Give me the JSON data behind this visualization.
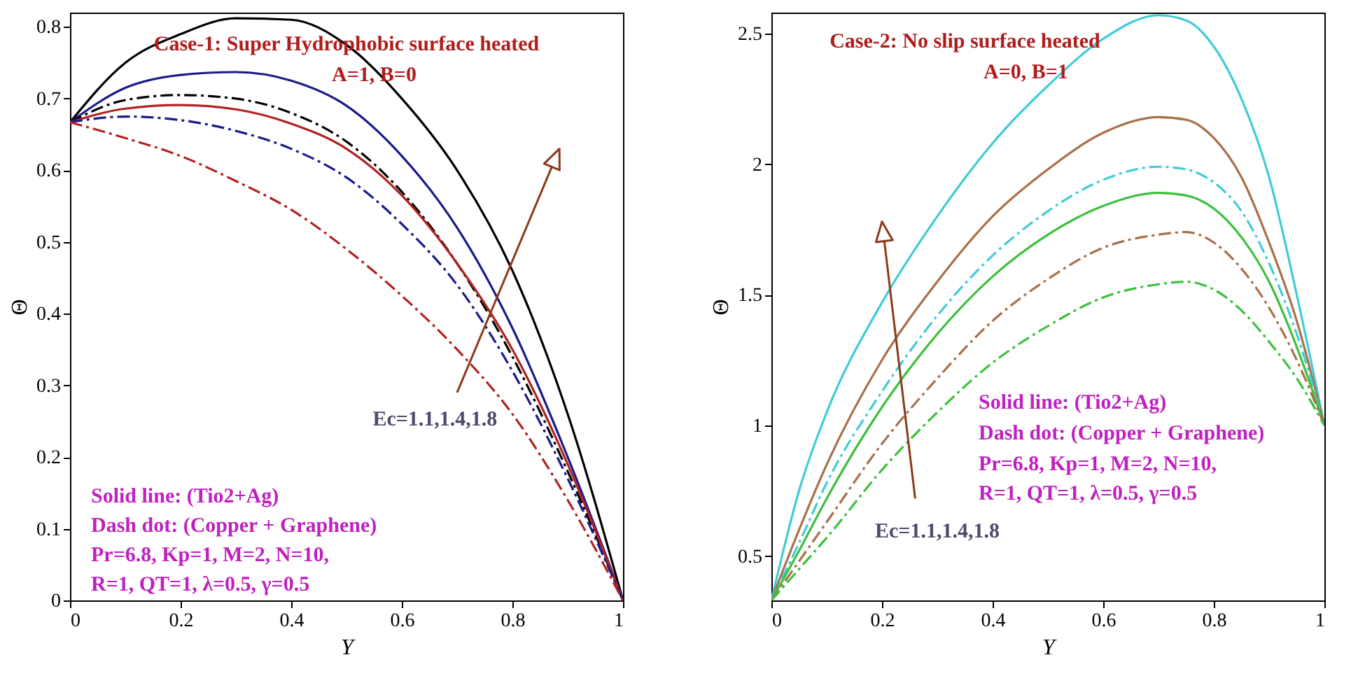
{
  "chart_data": [
    {
      "type": "line",
      "xlabel": "Y",
      "ylabel": "Θ",
      "x": [
        0,
        0.1,
        0.2,
        0.3,
        0.4,
        0.5,
        0.6,
        0.7,
        0.8,
        0.9,
        1
      ],
      "xlim": [
        0,
        1
      ],
      "xticks": [
        0,
        0.2,
        0.4,
        0.6,
        0.8,
        1
      ],
      "ylim": [
        0,
        0.82
      ],
      "yticks": [
        0,
        0.1,
        0.2,
        0.3,
        0.4,
        0.5,
        0.6,
        0.7,
        0.8
      ],
      "series": [
        {
          "color": "#000000",
          "line_style": "solid",
          "values": [
            0.667,
            0.75,
            0.79,
            0.812,
            0.81,
            0.775,
            0.7,
            0.6,
            0.46,
            0.26,
            0
          ]
        },
        {
          "color": "#1a1a8c",
          "line_style": "solid",
          "values": [
            0.667,
            0.715,
            0.733,
            0.737,
            0.725,
            0.69,
            0.62,
            0.52,
            0.38,
            0.2,
            0
          ]
        },
        {
          "color": "#000000",
          "line_style": "dashed",
          "values": [
            0.667,
            0.698,
            0.705,
            0.7,
            0.68,
            0.64,
            0.57,
            0.47,
            0.34,
            0.18,
            0
          ]
        },
        {
          "color": "#b22222",
          "line_style": "solid",
          "values": [
            0.667,
            0.686,
            0.691,
            0.685,
            0.665,
            0.63,
            0.565,
            0.47,
            0.35,
            0.19,
            0
          ]
        },
        {
          "color": "#1a1a8c",
          "line_style": "dashed",
          "values": [
            0.667,
            0.675,
            0.67,
            0.655,
            0.63,
            0.59,
            0.525,
            0.44,
            0.32,
            0.17,
            0
          ]
        },
        {
          "color": "#b22222",
          "line_style": "dashed",
          "values": [
            0.667,
            0.645,
            0.62,
            0.585,
            0.545,
            0.49,
            0.425,
            0.35,
            0.26,
            0.14,
            0
          ]
        }
      ],
      "annotations": [
        "Case-1: Super Hydrophobic surface heated",
        "A=1, B=0",
        "Ec=1.1,1.4,1.8",
        "Solid line: (Tio2+Ag)",
        "Dash dot: (Copper + Graphene)",
        "Pr=6.8, Kp=1, M=2, N=10,",
        "R=1, QT=1, λ=0.5, γ=0.5"
      ]
    },
    {
      "type": "line",
      "xlabel": "Y",
      "ylabel": "Θ",
      "x": [
        0,
        0.05,
        0.1,
        0.2,
        0.3,
        0.4,
        0.5,
        0.6,
        0.7,
        0.75,
        0.8,
        0.85,
        0.9,
        0.95,
        1
      ],
      "xlim": [
        0,
        1
      ],
      "xticks": [
        0,
        0.2,
        0.4,
        0.6,
        0.8,
        1
      ],
      "ylim": [
        0.33,
        2.58
      ],
      "yticks": [
        0.5,
        1,
        1.5,
        2,
        2.5
      ],
      "series": [
        {
          "color": "#40ccd6",
          "line_style": "solid",
          "values": [
            0.33,
            0.75,
            1.05,
            1.47,
            1.8,
            2.08,
            2.3,
            2.48,
            2.57,
            2.55,
            2.45,
            2.25,
            1.95,
            1.5,
            1.0
          ]
        },
        {
          "color": "#a8704a",
          "line_style": "solid",
          "values": [
            0.33,
            0.6,
            0.85,
            1.25,
            1.55,
            1.8,
            1.98,
            2.12,
            2.18,
            2.17,
            2.1,
            1.95,
            1.7,
            1.4,
            1.0
          ]
        },
        {
          "color": "#40ccd6",
          "line_style": "dashed",
          "values": [
            0.33,
            0.55,
            0.78,
            1.13,
            1.42,
            1.65,
            1.82,
            1.94,
            1.99,
            1.98,
            1.93,
            1.82,
            1.62,
            1.35,
            1.0
          ]
        },
        {
          "color": "#3cc03c",
          "line_style": "solid",
          "values": [
            0.33,
            0.52,
            0.72,
            1.07,
            1.35,
            1.57,
            1.73,
            1.84,
            1.89,
            1.88,
            1.83,
            1.72,
            1.55,
            1.3,
            1.0
          ]
        },
        {
          "color": "#a8704a",
          "line_style": "dashed",
          "values": [
            0.33,
            0.48,
            0.63,
            0.93,
            1.18,
            1.4,
            1.56,
            1.68,
            1.73,
            1.74,
            1.7,
            1.6,
            1.45,
            1.25,
            1.0
          ]
        },
        {
          "color": "#3cc03c",
          "line_style": "dashed",
          "values": [
            0.33,
            0.45,
            0.57,
            0.83,
            1.05,
            1.24,
            1.38,
            1.49,
            1.54,
            1.55,
            1.52,
            1.44,
            1.32,
            1.18,
            1.0
          ]
        }
      ],
      "annotations": [
        "Case-2: No slip surface heated",
        "A=0, B=1",
        "Ec=1.1,1.4,1.8",
        "Solid line: (Tio2+Ag)",
        "Dash dot: (Copper + Graphene)",
        "Pr=6.8, Kp=1, M=2, N=10,",
        "R=1, QT=1, λ=0.5, γ=0.5"
      ]
    }
  ]
}
